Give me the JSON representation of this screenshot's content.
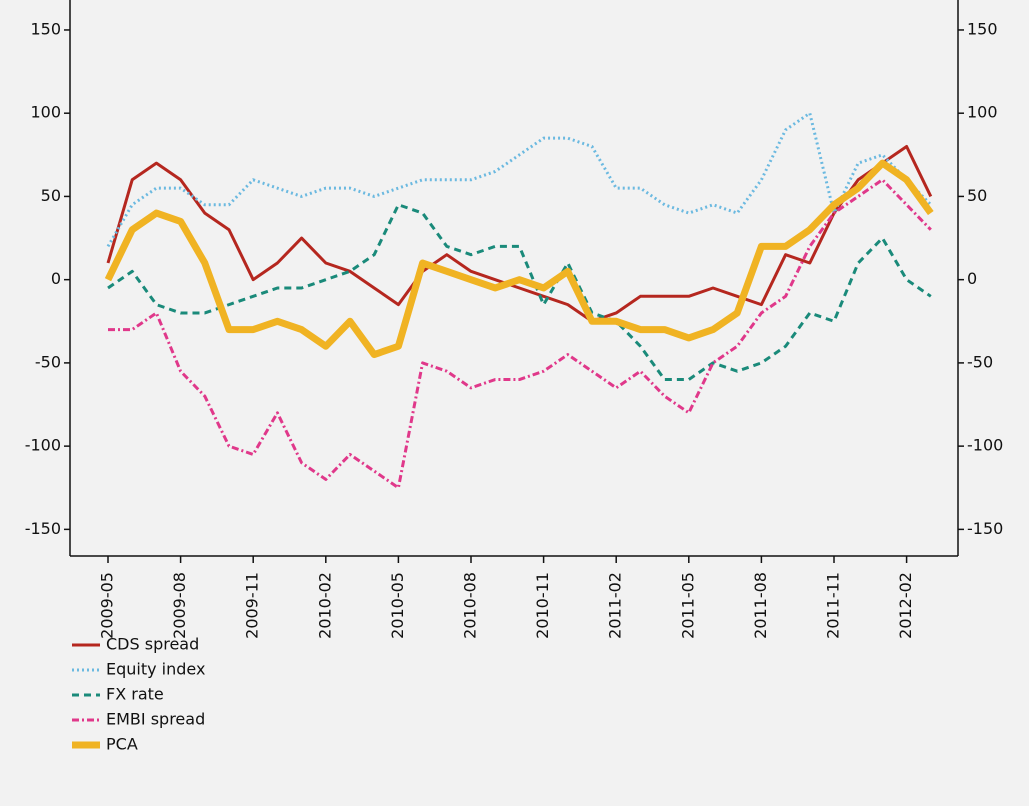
{
  "chart_data": {
    "type": "line",
    "categories": [
      "2009-05",
      null,
      null,
      "2009-08",
      null,
      null,
      "2009-11",
      null,
      null,
      "2010-02",
      null,
      null,
      "2010-05",
      null,
      null,
      "2010-08",
      null,
      null,
      "2010-11",
      null,
      null,
      "2011-02",
      null,
      null,
      "2011-05",
      null,
      null,
      "2011-08",
      null,
      null,
      "2011-11",
      null,
      null,
      "2012-02",
      null
    ],
    "ylim": [
      -166,
      168
    ],
    "yticks": [
      -150,
      -100,
      -50,
      0,
      50,
      100,
      150
    ],
    "y2lim": [
      -166,
      168
    ],
    "y2ticks": [
      -150,
      -100,
      -50,
      0,
      50,
      100,
      150
    ],
    "series": [
      {
        "name": "CDS spread",
        "color": "#b5271f",
        "style": "solid",
        "linewidth": 3,
        "values": [
          10,
          60,
          70,
          60,
          40,
          30,
          0,
          10,
          25,
          10,
          5,
          -5,
          -15,
          5,
          15,
          5,
          0,
          -5,
          -10,
          -15,
          -25,
          -20,
          -10,
          -10,
          -10,
          -5,
          -10,
          -15,
          15,
          10,
          40,
          60,
          70,
          80,
          50
        ]
      },
      {
        "name": "Equity index",
        "color": "#6bb9e0",
        "style": "dotted",
        "linewidth": 3,
        "values": [
          20,
          45,
          55,
          55,
          45,
          45,
          60,
          55,
          50,
          55,
          55,
          50,
          55,
          60,
          60,
          60,
          65,
          75,
          85,
          85,
          80,
          55,
          55,
          45,
          40,
          45,
          40,
          60,
          90,
          100,
          40,
          70,
          75,
          60,
          45
        ]
      },
      {
        "name": "FX rate",
        "color": "#1a8a7a",
        "style": "dashed",
        "linewidth": 3,
        "values": [
          -5,
          5,
          -15,
          -20,
          -20,
          -15,
          -10,
          -5,
          -5,
          0,
          5,
          15,
          45,
          40,
          20,
          15,
          20,
          20,
          -15,
          10,
          -20,
          -25,
          -40,
          -60,
          -60,
          -50,
          -55,
          -50,
          -40,
          -20,
          -25,
          10,
          25,
          0,
          -10
        ]
      },
      {
        "name": "EMBI spread",
        "color": "#e0388a",
        "style": "dashdot",
        "linewidth": 3,
        "values": [
          -30,
          -30,
          -20,
          -55,
          -70,
          -100,
          -105,
          -80,
          -110,
          -120,
          -105,
          -115,
          -125,
          -50,
          -55,
          -65,
          -60,
          -60,
          -55,
          -45,
          -55,
          -65,
          -55,
          -70,
          -80,
          -50,
          -40,
          -20,
          -10,
          20,
          40,
          50,
          60,
          45,
          30
        ]
      },
      {
        "name": "PCA",
        "color": "#f0b323",
        "style": "solid",
        "linewidth": 7,
        "values": [
          0,
          30,
          40,
          35,
          10,
          -30,
          -30,
          -25,
          -30,
          -40,
          -25,
          -45,
          -40,
          10,
          5,
          0,
          -5,
          0,
          -5,
          5,
          -25,
          -25,
          -30,
          -30,
          -35,
          -30,
          -20,
          20,
          20,
          30,
          45,
          55,
          70,
          60,
          40
        ]
      }
    ]
  }
}
